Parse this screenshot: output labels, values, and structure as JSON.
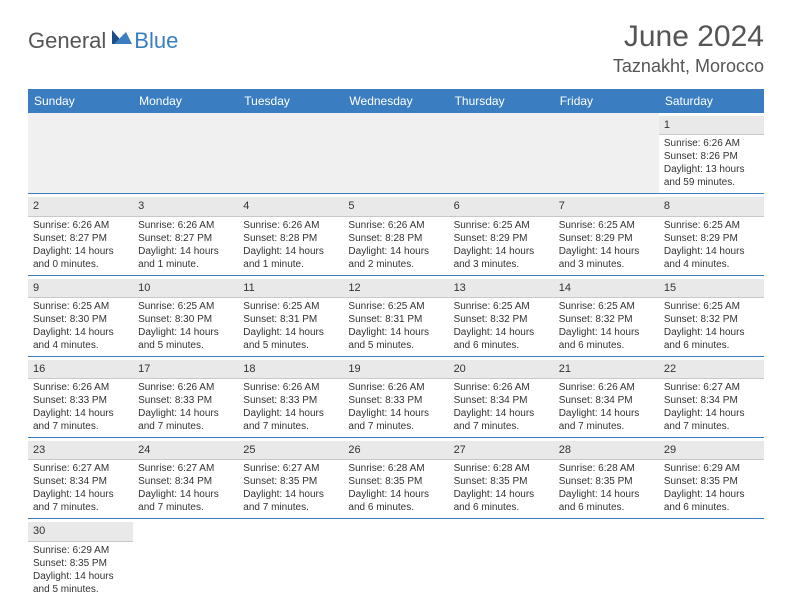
{
  "logo": {
    "text1": "General",
    "text2": "Blue",
    "accent_color": "#3a7ec1",
    "text_color": "#555555"
  },
  "title": {
    "month": "June 2024",
    "location": "Taznakht, Morocco"
  },
  "colors": {
    "header_bg": "#3a7ec1",
    "header_fg": "#ffffff",
    "row_divider": "#3a7ec1",
    "daynum_bg": "#e9e9e9",
    "daynum_border": "#c8c8c8",
    "empty_bg": "#f0f0f0",
    "body_text": "#333333"
  },
  "days_of_week": [
    "Sunday",
    "Monday",
    "Tuesday",
    "Wednesday",
    "Thursday",
    "Friday",
    "Saturday"
  ],
  "weeks": [
    [
      null,
      null,
      null,
      null,
      null,
      null,
      {
        "n": "1",
        "sunrise": "Sunrise: 6:26 AM",
        "sunset": "Sunset: 8:26 PM",
        "daylight": "Daylight: 13 hours and 59 minutes."
      }
    ],
    [
      {
        "n": "2",
        "sunrise": "Sunrise: 6:26 AM",
        "sunset": "Sunset: 8:27 PM",
        "daylight": "Daylight: 14 hours and 0 minutes."
      },
      {
        "n": "3",
        "sunrise": "Sunrise: 6:26 AM",
        "sunset": "Sunset: 8:27 PM",
        "daylight": "Daylight: 14 hours and 1 minute."
      },
      {
        "n": "4",
        "sunrise": "Sunrise: 6:26 AM",
        "sunset": "Sunset: 8:28 PM",
        "daylight": "Daylight: 14 hours and 1 minute."
      },
      {
        "n": "5",
        "sunrise": "Sunrise: 6:26 AM",
        "sunset": "Sunset: 8:28 PM",
        "daylight": "Daylight: 14 hours and 2 minutes."
      },
      {
        "n": "6",
        "sunrise": "Sunrise: 6:25 AM",
        "sunset": "Sunset: 8:29 PM",
        "daylight": "Daylight: 14 hours and 3 minutes."
      },
      {
        "n": "7",
        "sunrise": "Sunrise: 6:25 AM",
        "sunset": "Sunset: 8:29 PM",
        "daylight": "Daylight: 14 hours and 3 minutes."
      },
      {
        "n": "8",
        "sunrise": "Sunrise: 6:25 AM",
        "sunset": "Sunset: 8:29 PM",
        "daylight": "Daylight: 14 hours and 4 minutes."
      }
    ],
    [
      {
        "n": "9",
        "sunrise": "Sunrise: 6:25 AM",
        "sunset": "Sunset: 8:30 PM",
        "daylight": "Daylight: 14 hours and 4 minutes."
      },
      {
        "n": "10",
        "sunrise": "Sunrise: 6:25 AM",
        "sunset": "Sunset: 8:30 PM",
        "daylight": "Daylight: 14 hours and 5 minutes."
      },
      {
        "n": "11",
        "sunrise": "Sunrise: 6:25 AM",
        "sunset": "Sunset: 8:31 PM",
        "daylight": "Daylight: 14 hours and 5 minutes."
      },
      {
        "n": "12",
        "sunrise": "Sunrise: 6:25 AM",
        "sunset": "Sunset: 8:31 PM",
        "daylight": "Daylight: 14 hours and 5 minutes."
      },
      {
        "n": "13",
        "sunrise": "Sunrise: 6:25 AM",
        "sunset": "Sunset: 8:32 PM",
        "daylight": "Daylight: 14 hours and 6 minutes."
      },
      {
        "n": "14",
        "sunrise": "Sunrise: 6:25 AM",
        "sunset": "Sunset: 8:32 PM",
        "daylight": "Daylight: 14 hours and 6 minutes."
      },
      {
        "n": "15",
        "sunrise": "Sunrise: 6:25 AM",
        "sunset": "Sunset: 8:32 PM",
        "daylight": "Daylight: 14 hours and 6 minutes."
      }
    ],
    [
      {
        "n": "16",
        "sunrise": "Sunrise: 6:26 AM",
        "sunset": "Sunset: 8:33 PM",
        "daylight": "Daylight: 14 hours and 7 minutes."
      },
      {
        "n": "17",
        "sunrise": "Sunrise: 6:26 AM",
        "sunset": "Sunset: 8:33 PM",
        "daylight": "Daylight: 14 hours and 7 minutes."
      },
      {
        "n": "18",
        "sunrise": "Sunrise: 6:26 AM",
        "sunset": "Sunset: 8:33 PM",
        "daylight": "Daylight: 14 hours and 7 minutes."
      },
      {
        "n": "19",
        "sunrise": "Sunrise: 6:26 AM",
        "sunset": "Sunset: 8:33 PM",
        "daylight": "Daylight: 14 hours and 7 minutes."
      },
      {
        "n": "20",
        "sunrise": "Sunrise: 6:26 AM",
        "sunset": "Sunset: 8:34 PM",
        "daylight": "Daylight: 14 hours and 7 minutes."
      },
      {
        "n": "21",
        "sunrise": "Sunrise: 6:26 AM",
        "sunset": "Sunset: 8:34 PM",
        "daylight": "Daylight: 14 hours and 7 minutes."
      },
      {
        "n": "22",
        "sunrise": "Sunrise: 6:27 AM",
        "sunset": "Sunset: 8:34 PM",
        "daylight": "Daylight: 14 hours and 7 minutes."
      }
    ],
    [
      {
        "n": "23",
        "sunrise": "Sunrise: 6:27 AM",
        "sunset": "Sunset: 8:34 PM",
        "daylight": "Daylight: 14 hours and 7 minutes."
      },
      {
        "n": "24",
        "sunrise": "Sunrise: 6:27 AM",
        "sunset": "Sunset: 8:34 PM",
        "daylight": "Daylight: 14 hours and 7 minutes."
      },
      {
        "n": "25",
        "sunrise": "Sunrise: 6:27 AM",
        "sunset": "Sunset: 8:35 PM",
        "daylight": "Daylight: 14 hours and 7 minutes."
      },
      {
        "n": "26",
        "sunrise": "Sunrise: 6:28 AM",
        "sunset": "Sunset: 8:35 PM",
        "daylight": "Daylight: 14 hours and 6 minutes."
      },
      {
        "n": "27",
        "sunrise": "Sunrise: 6:28 AM",
        "sunset": "Sunset: 8:35 PM",
        "daylight": "Daylight: 14 hours and 6 minutes."
      },
      {
        "n": "28",
        "sunrise": "Sunrise: 6:28 AM",
        "sunset": "Sunset: 8:35 PM",
        "daylight": "Daylight: 14 hours and 6 minutes."
      },
      {
        "n": "29",
        "sunrise": "Sunrise: 6:29 AM",
        "sunset": "Sunset: 8:35 PM",
        "daylight": "Daylight: 14 hours and 6 minutes."
      }
    ],
    [
      {
        "n": "30",
        "sunrise": "Sunrise: 6:29 AM",
        "sunset": "Sunset: 8:35 PM",
        "daylight": "Daylight: 14 hours and 5 minutes."
      },
      null,
      null,
      null,
      null,
      null,
      null
    ]
  ]
}
